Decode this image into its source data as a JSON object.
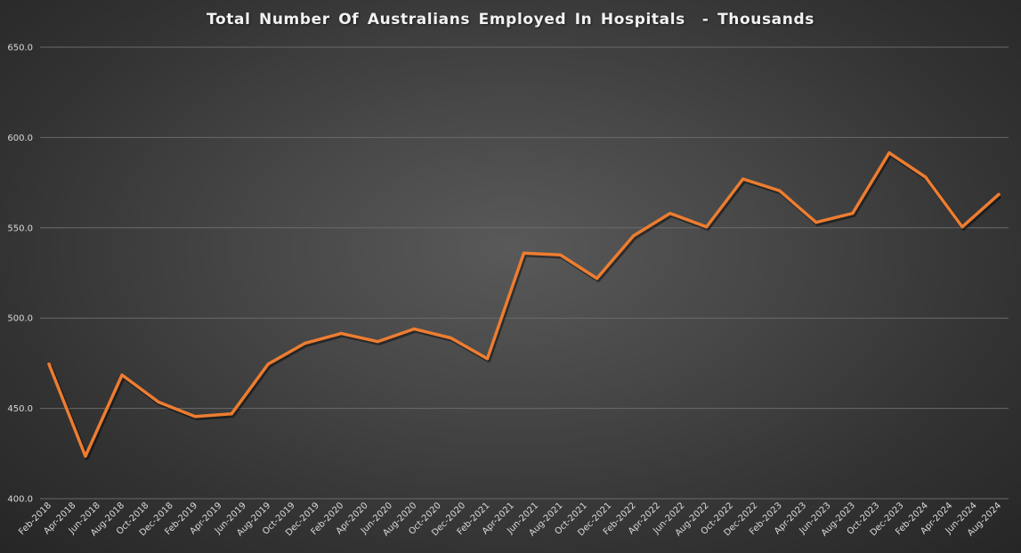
{
  "colors": {
    "line": "#ED7D31",
    "grid": "#6a6a6a",
    "text": "#d9d9d9"
  },
  "chart_data": {
    "type": "line",
    "title": "Total Number Of Australians Employed In Hospitals  - Thousands",
    "xlabel": "",
    "ylabel": "",
    "ylim": [
      400,
      650
    ],
    "yticks": [
      "400.0",
      "450.0",
      "500.0",
      "550.0",
      "600.0",
      "650.0"
    ],
    "grid": true,
    "legend": "none",
    "categories": [
      "Feb-2018",
      "Apr-2018",
      "Jun-2018",
      "Aug-2018",
      "Oct-2018",
      "Dec-2018",
      "Feb-2019",
      "Apr-2019",
      "Jun-2019",
      "Aug-2019",
      "Oct-2019",
      "Dec-2019",
      "Feb-2020",
      "Apr-2020",
      "Jun-2020",
      "Aug-2020",
      "Oct-2020",
      "Dec-2020",
      "Feb-2021",
      "Apr-2021",
      "Jun-2021",
      "Aug-2021",
      "Oct-2021",
      "Dec-2021",
      "Feb-2022",
      "Apr-2022",
      "Jun-2022",
      "Aug-2022",
      "Oct-2022",
      "Dec-2022",
      "Feb-2023",
      "Apr-2023",
      "Jun-2023",
      "Aug-2023",
      "Oct-2023",
      "Dec-2023",
      "Feb-2024",
      "Apr-2024",
      "Jun-2024",
      "Aug-2024"
    ],
    "series": [
      {
        "points": [
          {
            "x": "Feb-2018",
            "y": 474.5
          },
          {
            "x": "May-2018",
            "y": 423.5
          },
          {
            "x": "Aug-2018",
            "y": 468.5
          },
          {
            "x": "Nov-2018",
            "y": 453.5
          },
          {
            "x": "Feb-2019",
            "y": 445.5
          },
          {
            "x": "May-2019",
            "y": 447.0
          },
          {
            "x": "Aug-2019",
            "y": 474.5
          },
          {
            "x": "Nov-2019",
            "y": 486.0
          },
          {
            "x": "Feb-2020",
            "y": 491.5
          },
          {
            "x": "May-2020",
            "y": 487.0
          },
          {
            "x": "Aug-2020",
            "y": 494.0
          },
          {
            "x": "Nov-2020",
            "y": 489.0
          },
          {
            "x": "Feb-2021",
            "y": 477.5
          },
          {
            "x": "May-2021",
            "y": 536.0
          },
          {
            "x": "Aug-2021",
            "y": 535.0
          },
          {
            "x": "Nov-2021",
            "y": 522.0
          },
          {
            "x": "Feb-2022",
            "y": 545.5
          },
          {
            "x": "May-2022",
            "y": 558.0
          },
          {
            "x": "Aug-2022",
            "y": 550.5
          },
          {
            "x": "Nov-2022",
            "y": 577.0
          },
          {
            "x": "Feb-2023",
            "y": 570.5
          },
          {
            "x": "May-2023",
            "y": 553.0
          },
          {
            "x": "Aug-2023",
            "y": 558.0
          },
          {
            "x": "Nov-2023",
            "y": 591.5
          },
          {
            "x": "Feb-2024",
            "y": 578.0
          },
          {
            "x": "May-2024",
            "y": 550.5
          },
          {
            "x": "Aug-2024",
            "y": 568.5
          }
        ]
      }
    ]
  }
}
